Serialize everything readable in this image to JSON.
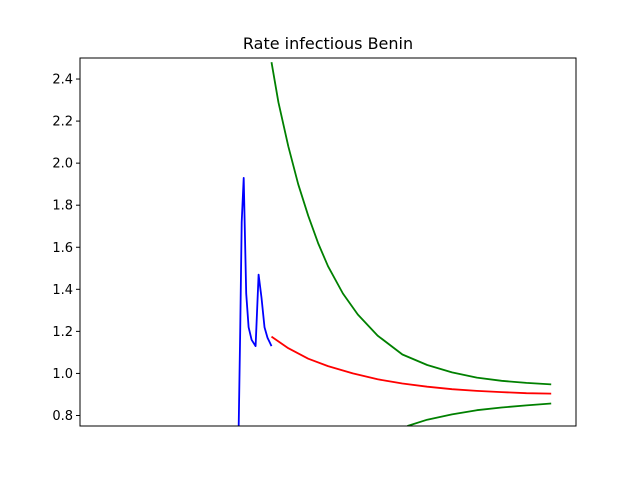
{
  "chart_data": {
    "type": "line",
    "title": "Rate infectious Benin",
    "xlabel": "",
    "ylabel": "",
    "x_ticks_shown": false,
    "xlim": [
      0,
      100
    ],
    "ylim": [
      0.75,
      2.5
    ],
    "yticks": [
      0.8,
      1.0,
      1.2,
      1.4,
      1.6,
      1.8,
      2.0,
      2.2,
      2.4
    ],
    "ytick_labels": [
      "0.8",
      "1.0",
      "1.2",
      "1.4",
      "1.6",
      "1.8",
      "2.0",
      "2.2",
      "2.4"
    ],
    "grid": false,
    "series": [
      {
        "color": "#0000ff",
        "x": [
          32.0,
          32.3,
          32.6,
          33.0,
          33.5,
          34.0,
          34.6,
          35.4,
          36.0,
          36.6,
          37.2,
          37.8,
          38.2,
          38.6
        ],
        "y": [
          0.75,
          1.2,
          1.72,
          1.93,
          1.38,
          1.22,
          1.16,
          1.13,
          1.47,
          1.36,
          1.22,
          1.17,
          1.15,
          1.13
        ]
      },
      {
        "color": "#ff0000",
        "x": [
          38.6,
          42,
          46,
          50,
          55,
          60,
          65,
          70,
          75,
          80,
          85,
          90,
          95
        ],
        "y": [
          1.175,
          1.12,
          1.07,
          1.035,
          1.0,
          0.972,
          0.952,
          0.937,
          0.925,
          0.917,
          0.911,
          0.906,
          0.904
        ]
      },
      {
        "color": "#008000",
        "x": [
          38.6,
          40,
          42,
          44,
          46,
          48,
          50,
          53,
          56,
          60,
          65,
          70,
          75,
          80,
          85,
          90,
          95
        ],
        "y": [
          2.48,
          2.29,
          2.08,
          1.9,
          1.75,
          1.62,
          1.51,
          1.38,
          1.28,
          1.18,
          1.09,
          1.04,
          1.005,
          0.98,
          0.965,
          0.955,
          0.948
        ]
      },
      {
        "color": "#008000",
        "x": [
          66,
          70,
          75,
          80,
          85,
          90,
          95
        ],
        "y": [
          0.75,
          0.78,
          0.805,
          0.825,
          0.838,
          0.848,
          0.857
        ]
      }
    ]
  }
}
